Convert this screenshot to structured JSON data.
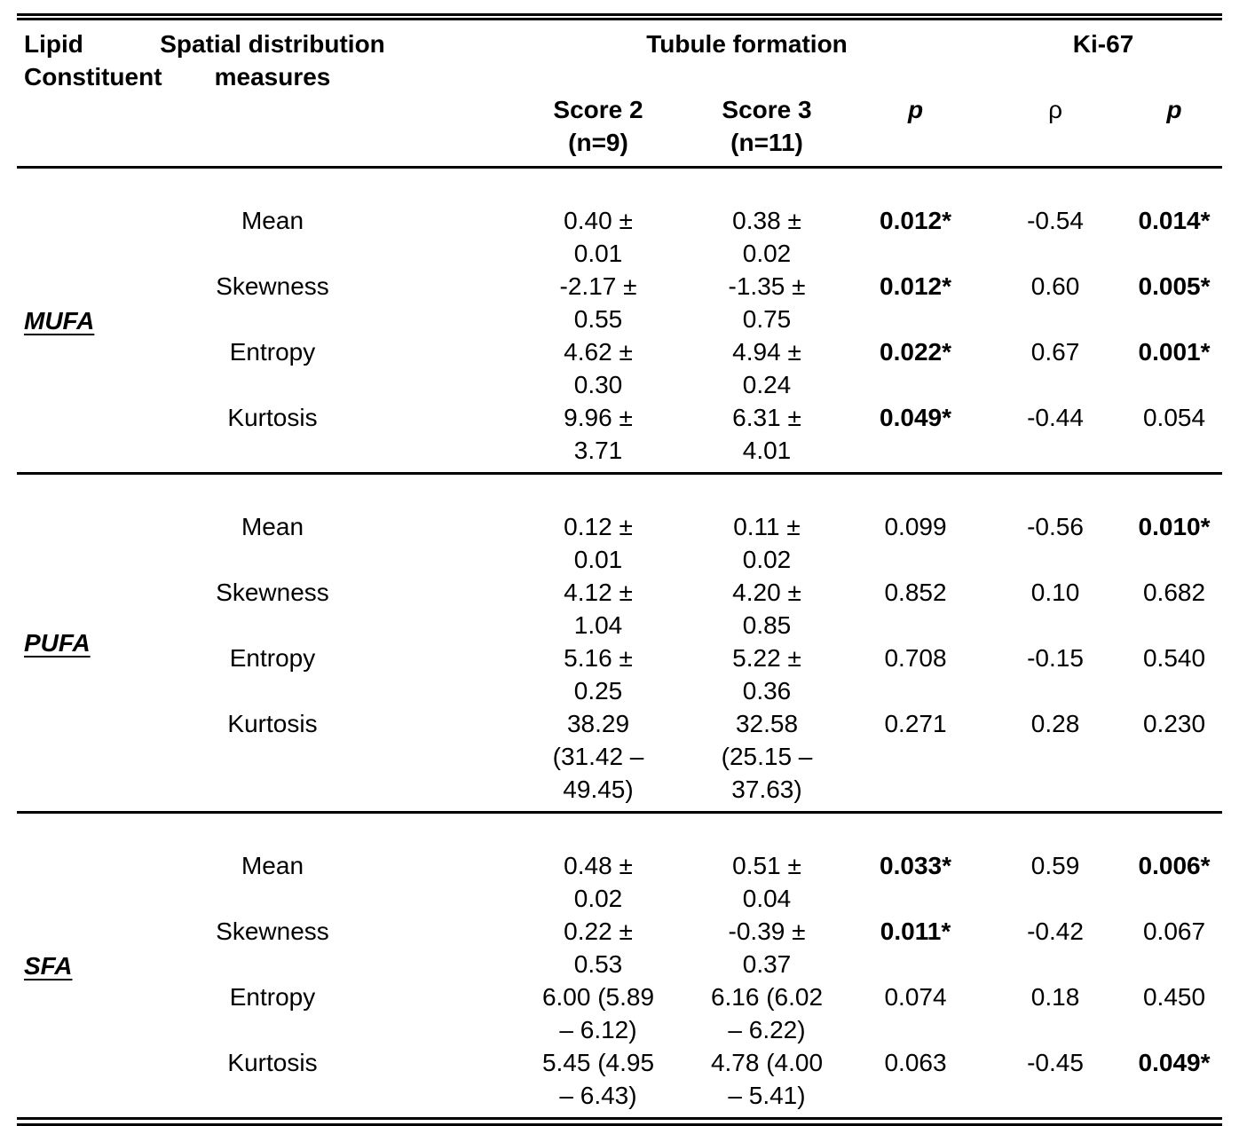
{
  "colors": {
    "text": "#000000",
    "background": "#ffffff"
  },
  "table": {
    "header": {
      "lipid": "Lipid\nConstituent",
      "measures": "Spatial distribution\nmeasures",
      "tubule_group": "Tubule formation",
      "ki67_group": "Ki-67",
      "sub": [
        "Score 2\n(n=9)",
        "Score 3\n(n=11)",
        "p",
        "ρ",
        "p"
      ]
    },
    "sections": [
      {
        "label": "MUFA",
        "rows": [
          {
            "measure": "Mean",
            "score2": "0.40 ±\n0.01",
            "score3": "0.38 ±\n0.02",
            "p_tubule": "0.012*",
            "p_tubule_bold": true,
            "rho": "-0.54",
            "p_ki67": "0.014*",
            "p_ki67_bold": true
          },
          {
            "measure": "Skewness",
            "score2": "-2.17 ±\n0.55",
            "score3": "-1.35 ±\n0.75",
            "p_tubule": "0.012*",
            "p_tubule_bold": true,
            "rho": "0.60",
            "p_ki67": "0.005*",
            "p_ki67_bold": true
          },
          {
            "measure": "Entropy",
            "score2": "4.62 ±\n0.30",
            "score3": "4.94 ±\n0.24",
            "p_tubule": "0.022*",
            "p_tubule_bold": true,
            "rho": "0.67",
            "p_ki67": "0.001*",
            "p_ki67_bold": true
          },
          {
            "measure": "Kurtosis",
            "score2": "9.96 ±\n3.71",
            "score3": "6.31 ±\n4.01",
            "p_tubule": "0.049*",
            "p_tubule_bold": true,
            "rho": "-0.44",
            "p_ki67": "0.054",
            "p_ki67_bold": false
          }
        ]
      },
      {
        "label": "PUFA",
        "rows": [
          {
            "measure": "Mean",
            "score2": "0.12 ±\n0.01",
            "score3": "0.11 ±\n0.02",
            "p_tubule": "0.099",
            "p_tubule_bold": false,
            "rho": "-0.56",
            "p_ki67": "0.010*",
            "p_ki67_bold": true
          },
          {
            "measure": "Skewness",
            "score2": "4.12 ±\n1.04",
            "score3": "4.20 ±\n0.85",
            "p_tubule": "0.852",
            "p_tubule_bold": false,
            "rho": "0.10",
            "p_ki67": "0.682",
            "p_ki67_bold": false
          },
          {
            "measure": "Entropy",
            "score2": "5.16 ±\n0.25",
            "score3": "5.22 ±\n0.36",
            "p_tubule": "0.708",
            "p_tubule_bold": false,
            "rho": "-0.15",
            "p_ki67": "0.540",
            "p_ki67_bold": false
          },
          {
            "measure": "Kurtosis",
            "score2": "38.29\n(31.42 –\n49.45)",
            "score3": "32.58\n(25.15 –\n37.63)",
            "p_tubule": "0.271",
            "p_tubule_bold": false,
            "rho": "0.28",
            "p_ki67": "0.230",
            "p_ki67_bold": false
          }
        ]
      },
      {
        "label": "SFA",
        "rows": [
          {
            "measure": "Mean",
            "score2": "0.48 ±\n0.02",
            "score3": "0.51 ±\n0.04",
            "p_tubule": "0.033*",
            "p_tubule_bold": true,
            "rho": "0.59",
            "p_ki67": "0.006*",
            "p_ki67_bold": true
          },
          {
            "measure": "Skewness",
            "score2": "0.22 ±\n0.53",
            "score3": "-0.39 ±\n0.37",
            "p_tubule": "0.011*",
            "p_tubule_bold": true,
            "rho": "-0.42",
            "p_ki67": "0.067",
            "p_ki67_bold": false
          },
          {
            "measure": "Entropy",
            "score2": "6.00 (5.89\n– 6.12)",
            "score3": "6.16 (6.02\n– 6.22)",
            "p_tubule": "0.074",
            "p_tubule_bold": false,
            "rho": "0.18",
            "p_ki67": "0.450",
            "p_ki67_bold": false
          },
          {
            "measure": "Kurtosis",
            "score2": "5.45 (4.95\n– 6.43)",
            "score3": "4.78 (4.00\n– 5.41)",
            "p_tubule": "0.063",
            "p_tubule_bold": false,
            "rho": "-0.45",
            "p_ki67": "0.049*",
            "p_ki67_bold": true
          }
        ]
      }
    ]
  }
}
